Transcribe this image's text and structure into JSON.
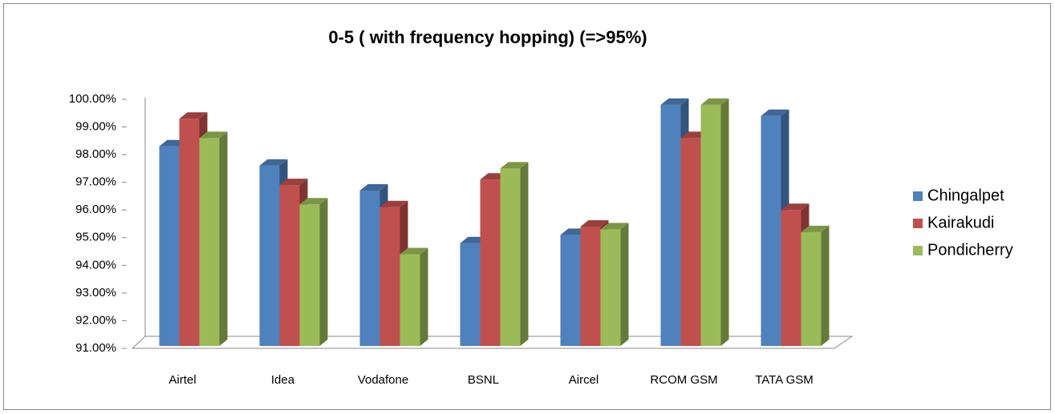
{
  "chart_data": {
    "type": "bar3d",
    "title": "0-5 ( with frequency hopping) (=>95%)",
    "categories": [
      "Airtel",
      "Idea",
      "Vodafone",
      "BSNL",
      "Aircel",
      "RCOM GSM",
      "TATA GSM"
    ],
    "series": [
      {
        "name": "Chingalpet",
        "color": "#4f81bd",
        "values": [
          98.3,
          97.6,
          96.7,
          94.8,
          95.1,
          99.8,
          99.4
        ]
      },
      {
        "name": "Kairakudi",
        "color": "#c0504d",
        "values": [
          99.3,
          96.9,
          96.1,
          97.1,
          95.4,
          98.6,
          96.0
        ]
      },
      {
        "name": "Pondicherry",
        "color": "#9bbb59",
        "values": [
          98.6,
          96.2,
          94.4,
          97.5,
          95.3,
          99.8,
          95.2
        ]
      }
    ],
    "ylim": [
      91,
      100
    ],
    "yticks": [
      {
        "value": 91,
        "label": "91.00%"
      },
      {
        "value": 92,
        "label": "92.00%"
      },
      {
        "value": 93,
        "label": "93.00%"
      },
      {
        "value": 94,
        "label": "94.00%"
      },
      {
        "value": 95,
        "label": "95.00%"
      },
      {
        "value": 96,
        "label": "96.00%"
      },
      {
        "value": 97,
        "label": "97.00%"
      },
      {
        "value": 98,
        "label": "98.00%"
      },
      {
        "value": 99,
        "label": "99.00%"
      },
      {
        "value": 100,
        "label": "100.00%"
      }
    ],
    "legend": "right"
  }
}
